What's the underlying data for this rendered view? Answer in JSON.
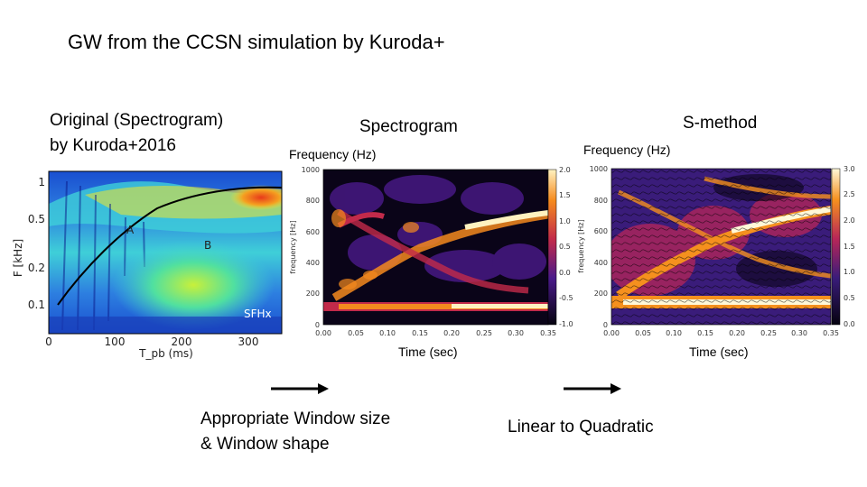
{
  "slide": {
    "title": "GW from the CCSN simulation by Kuroda+",
    "original_caption_line1": "Original (Spectrogram)",
    "original_caption_line2": "by Kuroda+2016",
    "spectrogram_title": "Spectrogram",
    "smethod_title": "S-method",
    "spectrogram_ylabel": "Frequency (Hz)",
    "smethod_ylabel": "Frequency (Hz)",
    "spectrogram_xlabel": "Time (sec)",
    "smethod_xlabel": "Time (sec)",
    "arrow1_line1": "Appropriate Window size",
    "arrow1_line2": "& Window shape",
    "arrow2_label": "Linear to Quadratic"
  },
  "chart_data": [
    {
      "type": "heatmap",
      "name": "original",
      "ylabel": "F [kHz]",
      "xlabel": "T_pb (ms)",
      "x_ticks": [
        "0",
        "100",
        "200",
        "300"
      ],
      "y_ticks": [
        "1",
        "0.5",
        "0.2",
        "0.1"
      ],
      "xlim": [
        0,
        350
      ],
      "y_scale": "log",
      "ylim": [
        0.07,
        1.3
      ],
      "annotations": [
        "A",
        "B",
        "SFHx"
      ],
      "colors": {
        "hot": "#e83a1a",
        "warm": "#f5e62a",
        "mid": "#3fcfd8",
        "cool": "#1a4fd0",
        "cold": "#0a1a8a"
      }
    },
    {
      "type": "heatmap",
      "name": "spectrogram",
      "ylabel_inner": "frequency [Hz]",
      "xlim": [
        0,
        0.35
      ],
      "ylim": [
        0,
        1000
      ],
      "x_ticks": [
        "0.00",
        "0.05",
        "0.10",
        "0.15",
        "0.20",
        "0.25",
        "0.30",
        "0.35"
      ],
      "y_ticks": [
        "0",
        "200",
        "400",
        "600",
        "800",
        "1000"
      ],
      "colorbar_ticks": [
        "2.0",
        "1.5",
        "1.0",
        "0.5",
        "0.0",
        "-0.5",
        "-1.0"
      ],
      "colors": {
        "hot": "#fff2c0",
        "warm": "#f58a1e",
        "mid": "#c22a4a",
        "cool": "#4a1a8a",
        "cold": "#05020f"
      }
    },
    {
      "type": "heatmap",
      "name": "s-method",
      "ylabel_inner": "frequency [Hz]",
      "xlim": [
        0,
        0.35
      ],
      "ylim": [
        0,
        1000
      ],
      "x_ticks": [
        "0.00",
        "0.05",
        "0.10",
        "0.15",
        "0.20",
        "0.25",
        "0.30",
        "0.35"
      ],
      "y_ticks": [
        "0",
        "200",
        "400",
        "600",
        "800",
        "1000"
      ],
      "colorbar_ticks": [
        "3.0",
        "2.5",
        "2.0",
        "1.5",
        "1.0",
        "0.5",
        "0.0"
      ],
      "colors": {
        "hot": "#fff8d8",
        "warm": "#f5901e",
        "mid": "#b82658",
        "cool": "#3a1c7a",
        "cold": "#05020f"
      }
    }
  ]
}
